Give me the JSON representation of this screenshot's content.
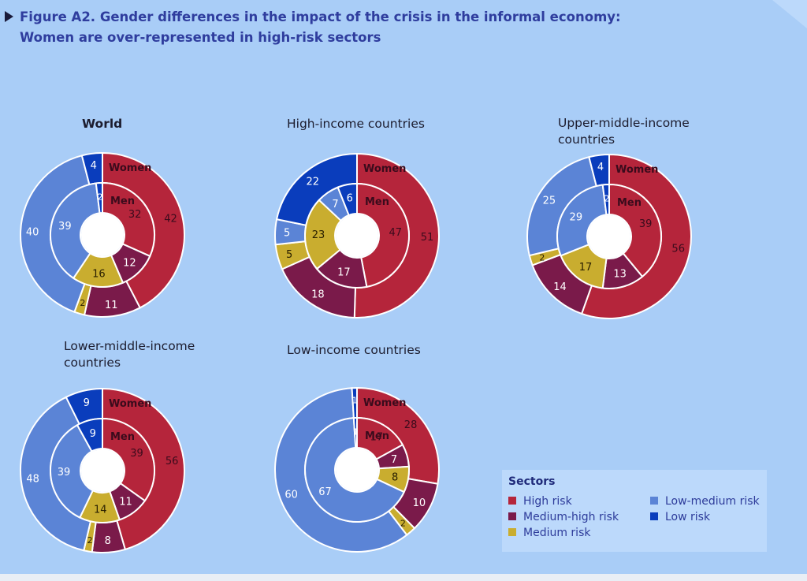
{
  "figure": {
    "title_line1": "Figure A2. Gender differences in the impact of the crisis in the informal economy:",
    "title_line2": "Women are over-represented in high-risk sectors"
  },
  "colors": {
    "high_risk": "#b5253b",
    "medium_high_risk": "#7a1a4a",
    "medium_risk": "#c9ad2f",
    "low_medium_risk": "#5b84d6",
    "low_risk": "#0a3dbc"
  },
  "legend": {
    "title": "Sectors",
    "items": [
      {
        "label": "High risk",
        "key": "high_risk"
      },
      {
        "label": "Low-medium risk",
        "key": "low_medium_risk"
      },
      {
        "label": "Medium-high risk",
        "key": "medium_high_risk"
      },
      {
        "label": "Low risk",
        "key": "low_risk"
      },
      {
        "label": "Medium risk",
        "key": "medium_risk"
      }
    ]
  },
  "chart_data": [
    {
      "type": "pie",
      "title_lines": [
        "World"
      ],
      "outer_label": "Women",
      "inner_label": "Men",
      "categories": [
        "High risk",
        "Medium-high risk",
        "Medium risk",
        "Low-medium risk",
        "Low risk"
      ],
      "series": [
        {
          "name": "Women",
          "values": [
            42,
            11,
            2,
            40,
            4
          ]
        },
        {
          "name": "Men",
          "values": [
            32,
            12,
            16,
            39,
            2
          ]
        }
      ]
    },
    {
      "type": "pie",
      "title_lines": [
        "High-income countries"
      ],
      "outer_label": "Women",
      "inner_label": "Men",
      "categories": [
        "High risk",
        "Medium-high risk",
        "Medium risk",
        "Low-medium risk",
        "Low risk"
      ],
      "series": [
        {
          "name": "Women",
          "values": [
            51,
            18,
            5,
            5,
            22
          ]
        },
        {
          "name": "Men",
          "values": [
            47,
            17,
            23,
            7,
            6
          ]
        }
      ]
    },
    {
      "type": "pie",
      "title_lines": [
        "Upper-middle-income",
        "countries"
      ],
      "outer_label": "Women",
      "inner_label": "Men",
      "categories": [
        "High risk",
        "Medium-high risk",
        "Medium risk",
        "Low-medium risk",
        "Low risk"
      ],
      "series": [
        {
          "name": "Women",
          "values": [
            56,
            14,
            2,
            25,
            4
          ]
        },
        {
          "name": "Men",
          "values": [
            39,
            13,
            17,
            29,
            2
          ]
        }
      ]
    },
    {
      "type": "pie",
      "title_lines": [
        "Lower-middle-income",
        "countries"
      ],
      "outer_label": "Women",
      "inner_label": "Men",
      "categories": [
        "High risk",
        "Medium-high risk",
        "Medium risk",
        "Low-medium risk",
        "Low risk"
      ],
      "series": [
        {
          "name": "Women",
          "values": [
            56,
            8,
            2,
            48,
            9
          ]
        },
        {
          "name": "Men",
          "values": [
            39,
            11,
            14,
            39,
            9
          ]
        }
      ]
    },
    {
      "type": "pie",
      "title_lines": [
        "Low-income countries"
      ],
      "outer_label": "Women",
      "inner_label": "Men",
      "categories": [
        "High risk",
        "Medium-high risk",
        "Medium risk",
        "Low-medium risk",
        "Low risk"
      ],
      "series": [
        {
          "name": "Women",
          "values": [
            28,
            10,
            2,
            60,
            1
          ]
        },
        {
          "name": "Men",
          "values": [
            17,
            7,
            8,
            67,
            1
          ]
        }
      ]
    }
  ]
}
